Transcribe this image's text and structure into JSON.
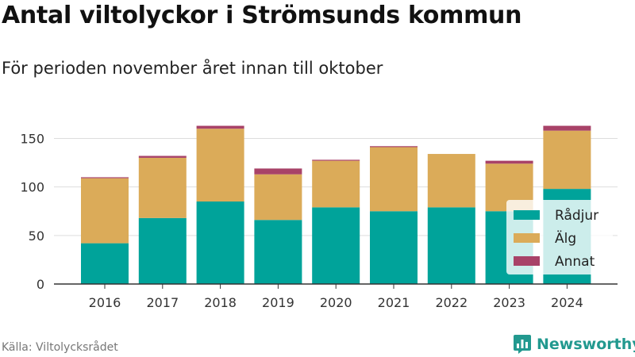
{
  "chart_data": {
    "type": "bar",
    "stacked": true,
    "title": "Antal viltolyckor i Strömsunds kommun",
    "subtitle": "För perioden november året innan till oktober",
    "xlabel": "",
    "ylabel": "",
    "categories": [
      "2016",
      "2017",
      "2018",
      "2019",
      "2020",
      "2021",
      "2022",
      "2023",
      "2024"
    ],
    "series": [
      {
        "name": "Rådjur",
        "color": "#00a39a",
        "values": [
          42,
          68,
          85,
          66,
          79,
          75,
          79,
          75,
          98
        ]
      },
      {
        "name": "Älg",
        "color": "#dbab59",
        "values": [
          67,
          62,
          75,
          47,
          48,
          66,
          55,
          49,
          60
        ]
      },
      {
        "name": "Annat",
        "color": "#a84268",
        "values": [
          1,
          2,
          3,
          6,
          1,
          1,
          0,
          3,
          5
        ]
      }
    ],
    "ylim": [
      0,
      170
    ],
    "yticks": [
      0,
      50,
      100,
      150
    ],
    "grid": true,
    "legend_position": "bottom-right"
  },
  "footer": {
    "source": "Källa: Viltolycksrådet",
    "brand": "Newsworthy",
    "brand_icon": "bar-chart-logo-icon",
    "brand_color": "#22998f"
  }
}
